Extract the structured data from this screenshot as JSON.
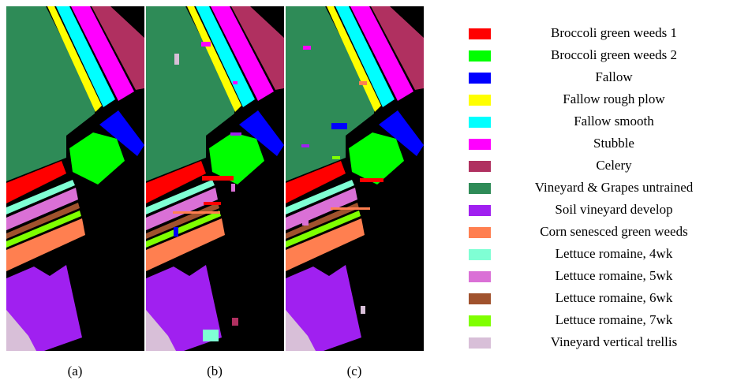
{
  "panels": [
    {
      "caption": "(a)"
    },
    {
      "caption": "(b)"
    },
    {
      "caption": "(c)"
    }
  ],
  "legend": [
    {
      "label": "Broccoli green weeds 1",
      "color": "#ff0000"
    },
    {
      "label": "Broccoli green weeds 2",
      "color": "#00ff00"
    },
    {
      "label": "Fallow",
      "color": "#0000ff"
    },
    {
      "label": "Fallow rough plow",
      "color": "#ffff00"
    },
    {
      "label": "Fallow smooth",
      "color": "#00ffff"
    },
    {
      "label": "Stubble",
      "color": "#ff00ff"
    },
    {
      "label": "Celery",
      "color": "#b03060"
    },
    {
      "label": "Vineyard & Grapes untrained",
      "color": "#2e8b57"
    },
    {
      "label": "Soil vineyard develop",
      "color": "#a020f0"
    },
    {
      "label": "Corn senesced green weeds",
      "color": "#ff7f50"
    },
    {
      "label": "Lettuce romaine, 4wk",
      "color": "#7fffd4"
    },
    {
      "label": "Lettuce romaine, 5wk",
      "color": "#da70d6"
    },
    {
      "label": "Lettuce romaine, 6wk",
      "color": "#a0522d"
    },
    {
      "label": "Lettuce romaine, 7wk",
      "color": "#7fff00"
    },
    {
      "label": "Vineyard vertical trellis",
      "color": "#d8bfd8"
    }
  ]
}
